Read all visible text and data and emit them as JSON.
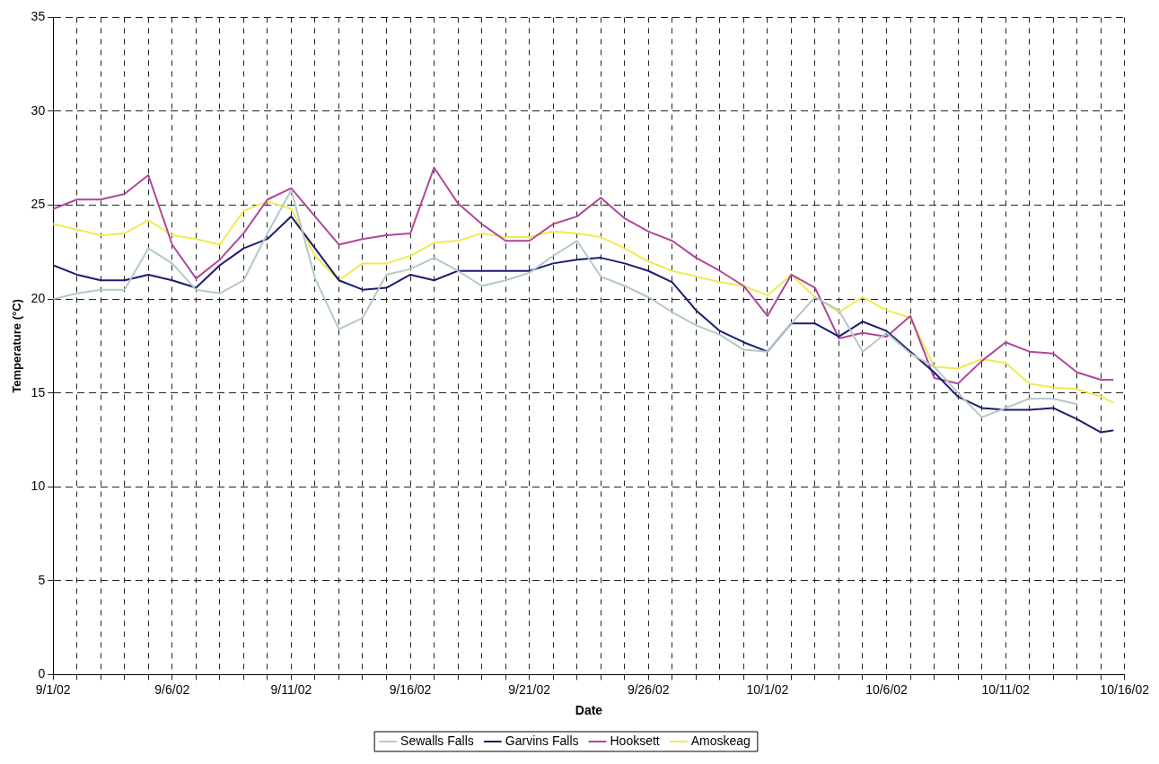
{
  "chart_data": {
    "type": "line",
    "xlabel": "Date",
    "ylabel": "Temperature (°C)",
    "x": [
      "--09-01",
      "--09-02",
      "--09-03",
      "--09-04",
      "--09-05",
      "--09-06",
      "--09-07",
      "--09-08",
      "--09-09",
      "--09-10",
      "--09-11",
      "--09-12",
      "--09-13",
      "--09-14",
      "--09-15",
      "--09-16",
      "--09-17",
      "--09-18",
      "--09-19",
      "--09-20",
      "--09-21",
      "--09-22",
      "--09-23",
      "--09-24",
      "--09-25",
      "--09-26",
      "--09-27",
      "--09-28",
      "--09-29",
      "--09-30",
      "--10-01",
      "--10-02",
      "--10-03",
      "--10-04",
      "--10-05",
      "--10-06",
      "--10-07",
      "--10-08",
      "--10-09",
      "--10-10",
      "--10-11",
      "--10-12",
      "--10-13",
      "--10-14",
      "--10-15",
      "--10-15T12:00"
    ],
    "series": [
      {
        "name": "Sewalls Falls",
        "color": "#b4c8c8",
        "values": [
          20,
          20.3,
          20.5,
          20.5,
          22.7,
          21.9,
          20.5,
          20.3,
          21,
          23.5,
          25.8,
          21.1,
          18.4,
          19,
          21.3,
          21.6,
          22.2,
          21.5,
          20.7,
          21,
          21.4,
          22.3,
          23.1,
          21.2,
          20.7,
          20.1,
          19.3,
          18.6,
          18.1,
          17.3,
          17.2,
          18.7,
          20.1,
          19.4,
          17.2,
          18.2,
          17.1,
          16.4,
          15,
          13.7,
          14.2,
          14.7,
          14.7,
          14.4,
          null,
          null
        ]
      },
      {
        "name": "Garvins Falls",
        "color": "#1c1c70",
        "values": [
          21.8,
          21.3,
          21,
          21,
          21.3,
          21,
          20.6,
          21.8,
          22.7,
          23.2,
          24.4,
          22.7,
          21,
          20.5,
          20.6,
          21.3,
          21,
          21.5,
          21.5,
          21.5,
          21.5,
          21.9,
          22.1,
          22.2,
          21.9,
          21.5,
          20.9,
          19.4,
          18.3,
          17.7,
          17.2,
          18.7,
          18.7,
          18,
          18.8,
          18.3,
          17.2,
          16.1,
          14.8,
          14.2,
          14.1,
          14.1,
          14.2,
          13.6,
          12.9,
          13
        ]
      },
      {
        "name": "Hooksett",
        "color": "#b0479a",
        "values": [
          24.8,
          25.3,
          25.3,
          25.6,
          26.6,
          22.9,
          21.1,
          22.1,
          23.5,
          25.3,
          25.9,
          24.4,
          22.9,
          23.2,
          23.4,
          23.5,
          27,
          25.1,
          24,
          23.1,
          23.1,
          24,
          24.4,
          25.4,
          24.3,
          23.6,
          23.1,
          22.2,
          21.5,
          20.7,
          19.1,
          21.3,
          20.6,
          17.9,
          18.2,
          18,
          19.1,
          15.8,
          15.5,
          16.7,
          17.7,
          17.2,
          17.1,
          16.1,
          15.7,
          15.7
        ]
      },
      {
        "name": "Amoskeag",
        "color": "#f0ea50",
        "values": [
          24,
          23.7,
          23.4,
          23.5,
          24.2,
          23.4,
          23.2,
          22.9,
          24.7,
          25.2,
          24.8,
          22.3,
          21,
          21.9,
          21.9,
          22.3,
          23,
          23.1,
          23.5,
          23.3,
          23.3,
          23.6,
          23.5,
          23.3,
          22.7,
          22,
          21.5,
          21.2,
          20.9,
          20.7,
          20.2,
          21.3,
          20.1,
          19.3,
          20.1,
          19.4,
          19,
          16.4,
          16.3,
          16.8,
          16.6,
          15.5,
          15.3,
          15.2,
          14.8,
          14.5
        ]
      }
    ],
    "xlim": [
      "--09-01",
      "--10-16"
    ],
    "xticks": [
      {
        "value": "--09-01",
        "label": "9/1/02"
      },
      {
        "value": "--09-02",
        "label": null
      },
      {
        "value": "--09-03",
        "label": null
      },
      {
        "value": "--09-04",
        "label": null
      },
      {
        "value": "--09-05",
        "label": null
      },
      {
        "value": "--09-06",
        "label": "9/6/02"
      },
      {
        "value": "--09-07",
        "label": null
      },
      {
        "value": "--09-08",
        "label": null
      },
      {
        "value": "--09-09",
        "label": null
      },
      {
        "value": "--09-10",
        "label": null
      },
      {
        "value": "--09-11",
        "label": "9/11/02"
      },
      {
        "value": "--09-12",
        "label": null
      },
      {
        "value": "--09-13",
        "label": null
      },
      {
        "value": "--09-14",
        "label": null
      },
      {
        "value": "--09-15",
        "label": null
      },
      {
        "value": "--09-16",
        "label": "9/16/02"
      },
      {
        "value": "--09-17",
        "label": null
      },
      {
        "value": "--09-18",
        "label": null
      },
      {
        "value": "--09-19",
        "label": null
      },
      {
        "value": "--09-20",
        "label": null
      },
      {
        "value": "--09-21",
        "label": "9/21/02"
      },
      {
        "value": "--09-22",
        "label": null
      },
      {
        "value": "--09-23",
        "label": null
      },
      {
        "value": "--09-24",
        "label": null
      },
      {
        "value": "--09-25",
        "label": null
      },
      {
        "value": "--09-26",
        "label": "9/26/02"
      },
      {
        "value": "--09-27",
        "label": null
      },
      {
        "value": "--09-28",
        "label": null
      },
      {
        "value": "--09-29",
        "label": null
      },
      {
        "value": "--09-30",
        "label": null
      },
      {
        "value": "--10-01",
        "label": "10/1/02"
      },
      {
        "value": "--10-02",
        "label": null
      },
      {
        "value": "--10-03",
        "label": null
      },
      {
        "value": "--10-04",
        "label": null
      },
      {
        "value": "--10-05",
        "label": null
      },
      {
        "value": "--10-06",
        "label": "10/6/02"
      },
      {
        "value": "--10-07",
        "label": null
      },
      {
        "value": "--10-08",
        "label": null
      },
      {
        "value": "--10-09",
        "label": null
      },
      {
        "value": "--10-10",
        "label": null
      },
      {
        "value": "--10-11",
        "label": "10/11/02"
      },
      {
        "value": "--10-12",
        "label": null
      },
      {
        "value": "--10-13",
        "label": null
      },
      {
        "value": "--10-14",
        "label": null
      },
      {
        "value": "--10-15",
        "label": null
      },
      {
        "value": "--10-16",
        "label": "10/16/02"
      }
    ],
    "ylim": [
      0,
      35
    ],
    "yticks": [
      0,
      5,
      10,
      15,
      20,
      25,
      30,
      35
    ],
    "grid": true,
    "legend": "bottom",
    "marker": "none",
    "line_style": "solid"
  }
}
